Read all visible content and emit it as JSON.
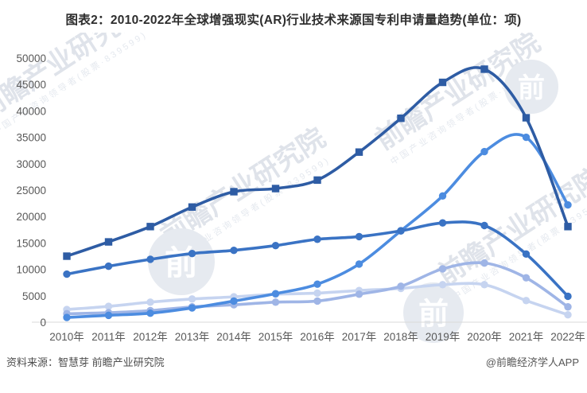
{
  "title": "图表2：2010-2022年全球增强现实(AR)行业技术来源国专利申请量趋势(单位：项)",
  "source_note": "资料来源：智慧芽 前瞻产业研究院",
  "credit": "@前瞻经济学人APP",
  "watermark": {
    "primary": "前瞻产业研究院",
    "secondary": "中国产业咨询领导者(股票·839599)",
    "logo_glyph": "前"
  },
  "chart_data": {
    "type": "line",
    "title": "2010-2022年全球增强现实(AR)行业技术来源国专利申请量趋势",
    "unit": "项",
    "categories": [
      "2010年",
      "2011年",
      "2012年",
      "2013年",
      "2014年",
      "2015年",
      "2016年",
      "2017年",
      "2018年",
      "2019年",
      "2020年",
      "2021年",
      "2022年"
    ],
    "y_ticks": [
      0,
      5000,
      10000,
      15000,
      20000,
      25000,
      30000,
      35000,
      40000,
      45000,
      50000
    ],
    "ylim": [
      0,
      50000
    ],
    "grid": false,
    "legend_position": "none",
    "axis_label_color": "#595959",
    "axis_line_color": "#d9d9d9",
    "series": [
      {
        "name": "series-1-dark-blue",
        "color": "#2e5ca4",
        "marker": "square",
        "values": [
          12500,
          15200,
          18100,
          21800,
          24700,
          25300,
          26900,
          32200,
          38600,
          45400,
          47900,
          38700,
          18100
        ]
      },
      {
        "name": "series-2-medium-blue",
        "color": "#3a73c4",
        "marker": "circle",
        "values": [
          9100,
          10600,
          11900,
          13000,
          13600,
          14500,
          15700,
          16200,
          17300,
          18800,
          18300,
          12900,
          4900
        ]
      },
      {
        "name": "series-3-bright-blue",
        "color": "#4c8ce0",
        "marker": "circle",
        "values": [
          900,
          1300,
          1700,
          2700,
          4000,
          5400,
          7200,
          11000,
          17300,
          23900,
          32300,
          35000,
          22200
        ]
      },
      {
        "name": "series-4-light-blue",
        "color": "#9fb5e6",
        "marker": "circle",
        "values": [
          1600,
          1800,
          2200,
          2900,
          3300,
          3800,
          4000,
          5300,
          6800,
          10100,
          11200,
          8400,
          2900
        ]
      },
      {
        "name": "series-5-pale-blue",
        "color": "#c6d4f0",
        "marker": "circle",
        "values": [
          2400,
          3000,
          3800,
          4400,
          4800,
          5300,
          5500,
          6000,
          6400,
          7100,
          7100,
          4100,
          1400
        ]
      }
    ]
  }
}
